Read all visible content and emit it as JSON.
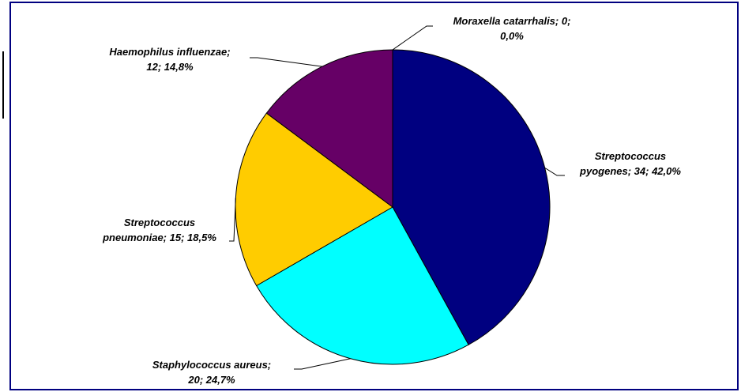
{
  "chart_data": {
    "type": "pie",
    "values": [
      34,
      20,
      15,
      12,
      0
    ],
    "value_labels": [
      [
        "Streptococcus",
        "pyogenes; 34; 42,0%"
      ],
      [
        "Staphylococcus aureus;",
        "20; 24,7%"
      ],
      [
        "Streptococcus",
        "pneumoniae; 15; 18,5%"
      ],
      [
        "Haemophilus influenzae;",
        "12; 14,8%"
      ],
      [
        "Moraxella catarrhalis; 0;",
        "0,0%"
      ]
    ],
    "colors": [
      "#000080",
      "#00ffff",
      "#ffcc00",
      "#660066",
      "#99ccff"
    ]
  }
}
